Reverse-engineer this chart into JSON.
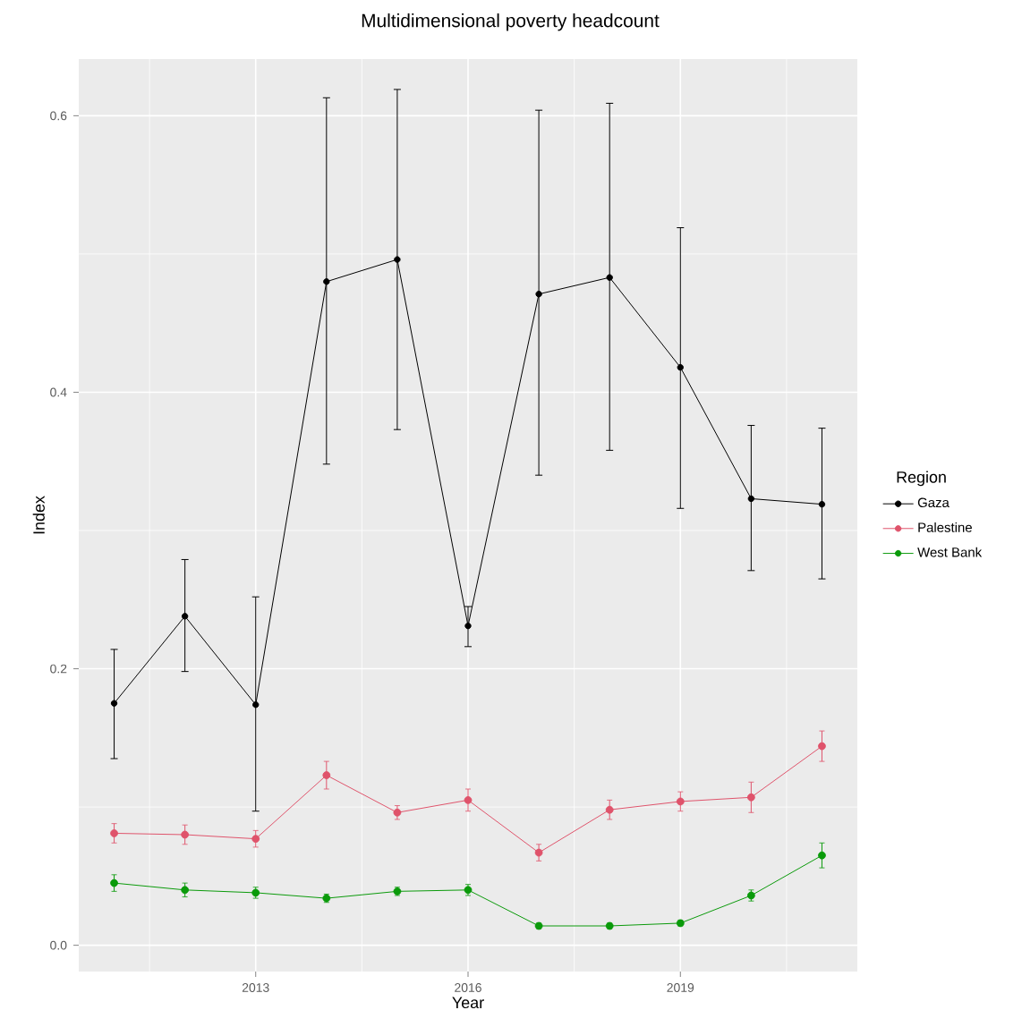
{
  "chart_data": {
    "type": "line",
    "title": "Multidimensional poverty headcount",
    "xlabel": "Year",
    "ylabel": "Index",
    "legend_title": "Region",
    "x": [
      2011,
      2012,
      2013,
      2014,
      2015,
      2016,
      2017,
      2018,
      2019,
      2020,
      2021
    ],
    "series": [
      {
        "name": "Gaza",
        "color": "#000000",
        "values": [
          0.175,
          0.238,
          0.174,
          0.48,
          0.496,
          0.231,
          0.471,
          0.483,
          0.418,
          0.323,
          0.319
        ],
        "errors": [
          [
            0.135,
            0.214
          ],
          [
            0.198,
            0.279
          ],
          [
            0.097,
            0.252
          ],
          [
            0.348,
            0.613
          ],
          [
            0.373,
            0.619
          ],
          [
            0.216,
            0.245
          ],
          [
            0.34,
            0.604
          ],
          [
            0.358,
            0.609
          ],
          [
            0.316,
            0.519
          ],
          [
            0.271,
            0.376
          ],
          [
            0.265,
            0.374
          ]
        ]
      },
      {
        "name": "Palestine",
        "color": "#DF536B",
        "values": [
          0.081,
          0.08,
          0.077,
          0.123,
          0.096,
          0.105,
          0.067,
          0.098,
          0.104,
          0.107,
          0.144
        ],
        "errors": [
          0.007,
          0.007,
          0.006,
          0.01,
          0.005,
          0.008,
          0.006,
          0.007,
          0.007,
          0.011,
          0.011
        ]
      },
      {
        "name": "West Bank",
        "color": "#0A9A0A",
        "values": [
          0.045,
          0.04,
          0.038,
          0.034,
          0.039,
          0.04,
          0.014,
          0.014,
          0.016,
          0.036,
          0.065
        ],
        "errors": [
          0.006,
          0.005,
          0.004,
          0.003,
          0.003,
          0.004,
          0.002,
          0.002,
          0.002,
          0.004,
          0.009
        ]
      }
    ],
    "xlim": [
      2010.5,
      2021.5
    ],
    "ylim": [
      -0.019,
      0.641
    ],
    "xticks": [
      2013,
      2016,
      2019
    ],
    "yticks": [
      {
        "value": 0,
        "label": "0.0"
      },
      {
        "value": 0.2,
        "label": "0.2"
      },
      {
        "value": 0.4,
        "label": "0.4"
      },
      {
        "value": 0.6,
        "label": "0.6"
      }
    ],
    "grid": true,
    "legend": "right",
    "marker": "circle",
    "line_style": "solid"
  }
}
